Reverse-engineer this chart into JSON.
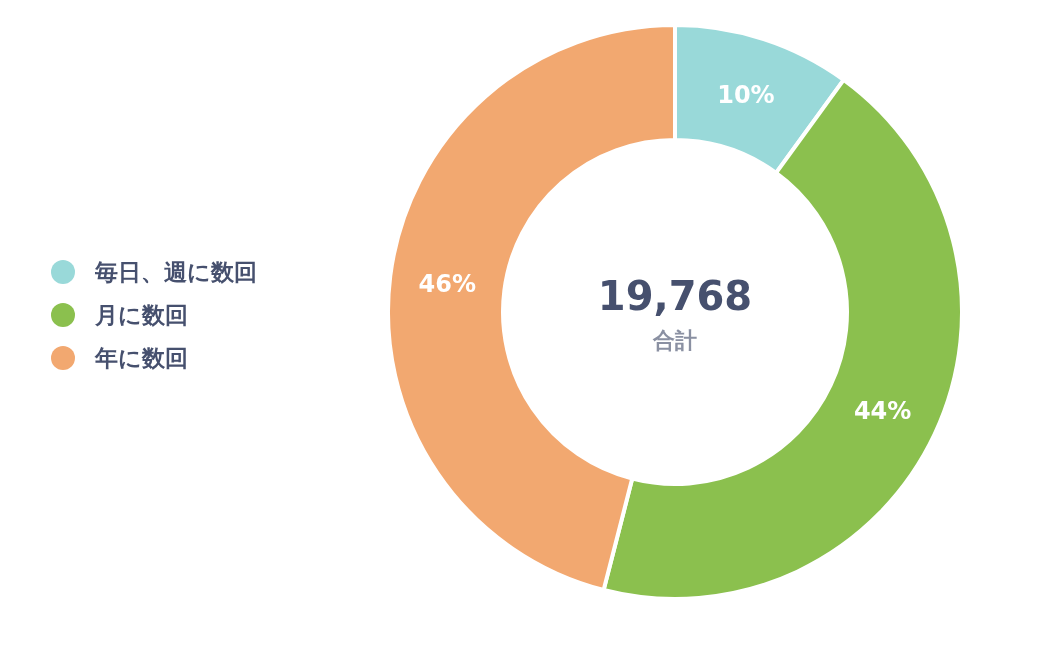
{
  "chart_data": {
    "type": "donut",
    "categories": [
      "毎日、週に数回",
      "月に数回",
      "年に数回"
    ],
    "values": [
      10,
      44,
      46
    ],
    "colors": [
      "#99d9d9",
      "#8bc04e",
      "#f2a870"
    ],
    "value_labels": [
      "10%",
      "44%",
      "46%"
    ],
    "legend": "left",
    "annotations": [
      "19,768",
      "合計"
    ]
  }
}
